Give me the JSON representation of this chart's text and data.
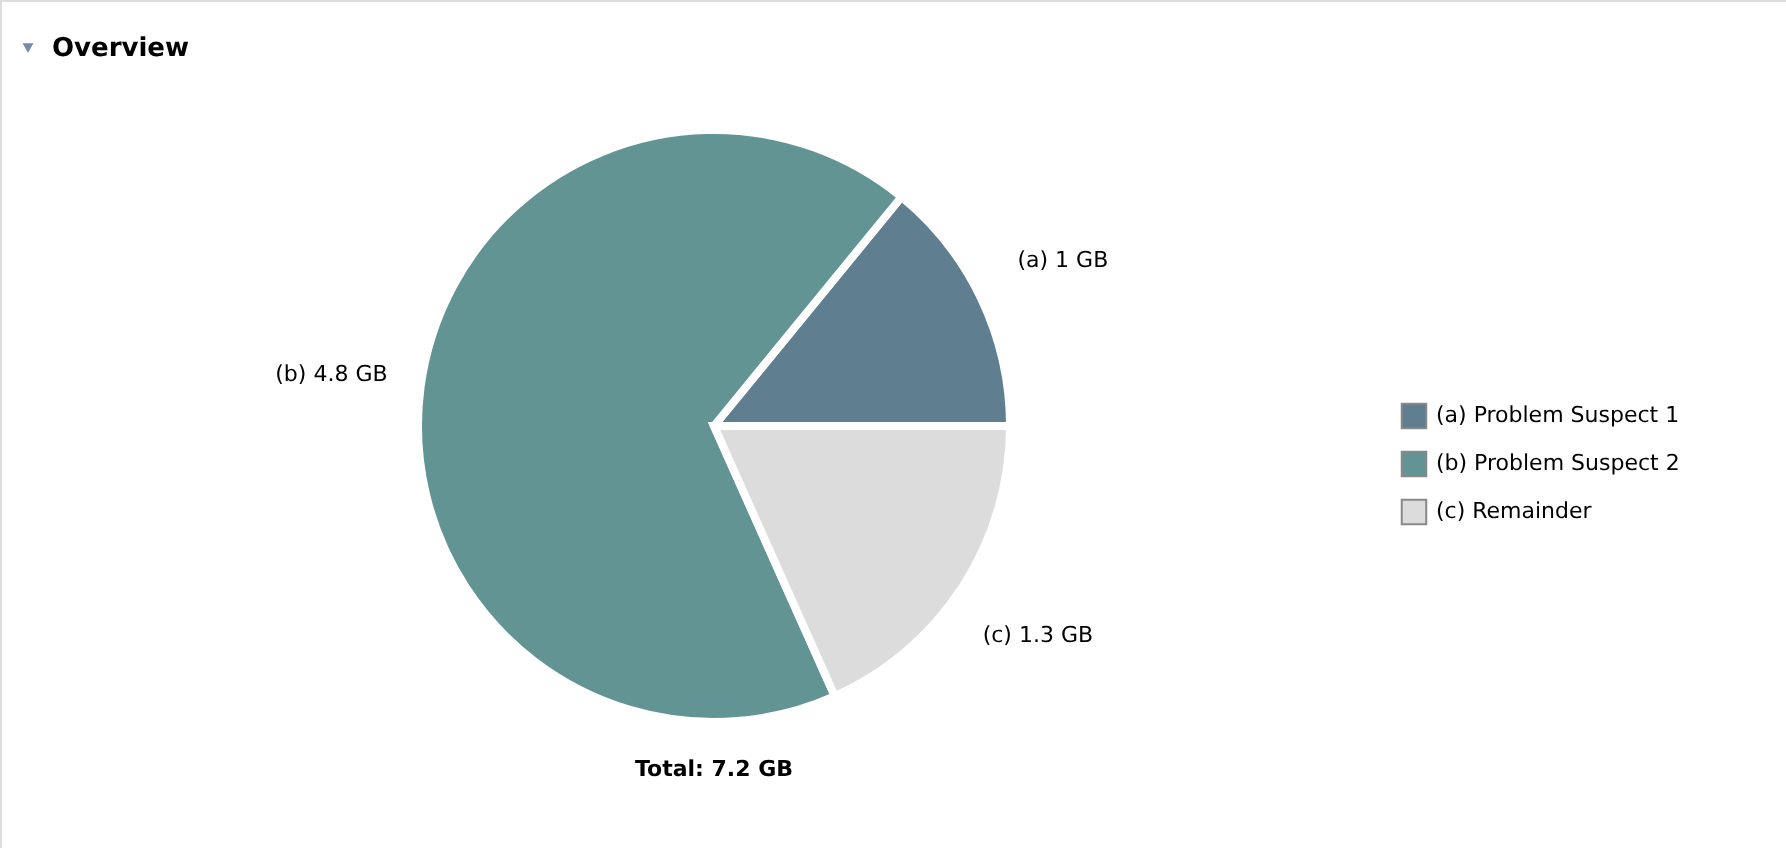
{
  "chart_data": {
    "type": "pie",
    "title": "Overview",
    "categories": [
      "(a)  Problem Suspect 1",
      "(b)  Problem Suspect 2",
      "(c)  Remainder"
    ],
    "values": [
      1,
      4.8,
      1.3
    ],
    "value_labels": [
      "(a)  1 GB",
      "(b)  4.8 GB",
      "(c)  1.3 GB"
    ],
    "colors": [
      "#5f7f90",
      "#629494",
      "#dcdcdc"
    ],
    "legend": "right",
    "annotations": [
      "Total: 7.2 GB"
    ]
  }
}
